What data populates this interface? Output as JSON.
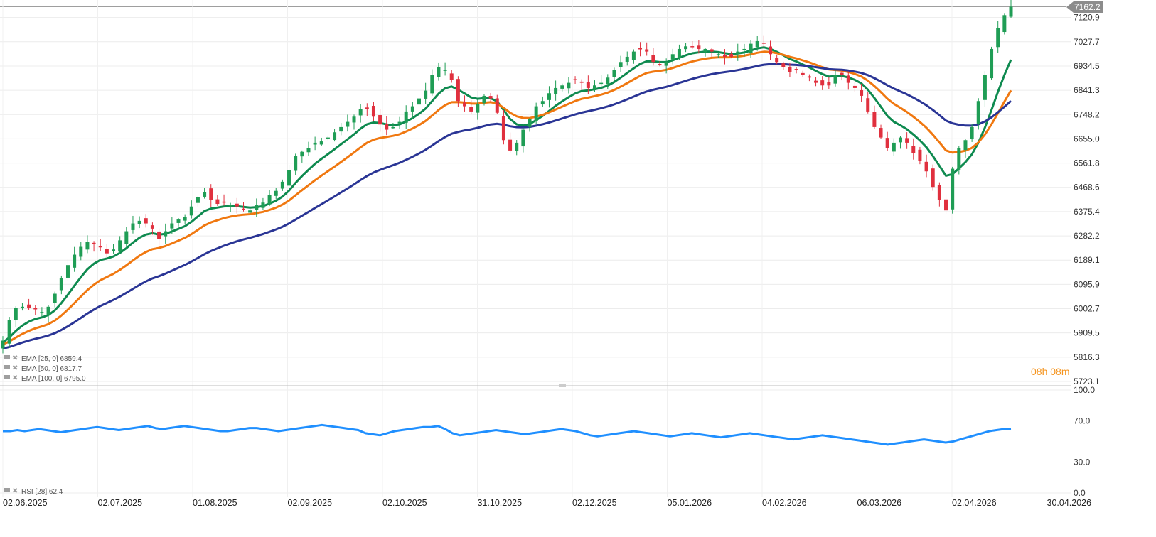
{
  "colors": {
    "up": "#1f9d55",
    "down": "#e0303e",
    "ema25": "#0e8a4f",
    "ema50": "#f07810",
    "ema100": "#2a3595",
    "rsi": "#1f8fff",
    "price_tag_bg": "#8c8c8c",
    "timer": "#f5941e"
  },
  "chart_data": [
    {
      "type": "candlestick",
      "title": "",
      "x_ticks": [
        "02.06.2025",
        "02.07.2025",
        "01.08.2025",
        "02.09.2025",
        "02.10.2025",
        "31.10.2025",
        "02.12.2025",
        "05.01.2026",
        "04.02.2026",
        "06.03.2026",
        "02.04.2026",
        "30.04.2026"
      ],
      "y_ticks": [
        "7120.9",
        "7027.7",
        "6934.5",
        "6841.3",
        "6748.2",
        "6655.0",
        "6561.8",
        "6468.6",
        "6375.4",
        "6282.2",
        "6189.1",
        "6095.9",
        "6002.7",
        "5909.5",
        "5816.3",
        "5723.1"
      ],
      "ylim": [
        5723.1,
        7162.2
      ],
      "last_price": "7162.2",
      "grid": true,
      "close_series_sampled": [
        5880,
        5960,
        6005,
        6010,
        6005,
        6000,
        5990,
        6010,
        6060,
        6120,
        6170,
        6210,
        6240,
        6260,
        6250,
        6240,
        6215,
        6230,
        6265,
        6300,
        6330,
        6340,
        6330,
        6310,
        6270,
        6300,
        6330,
        6345,
        6355,
        6395,
        6430,
        6450,
        6420,
        6405,
        6410,
        6400,
        6395,
        6385,
        6380,
        6400,
        6410,
        6440,
        6455,
        6490,
        6535,
        6590,
        6605,
        6620,
        6640,
        6645,
        6660,
        6680,
        6700,
        6720,
        6740,
        6770,
        6770,
        6740,
        6710,
        6690,
        6700,
        6720,
        6760,
        6780,
        6810,
        6840,
        6900,
        6930,
        6920,
        6880,
        6800,
        6780,
        6760,
        6790,
        6820,
        6810,
        6755,
        6650,
        6610,
        6640,
        6690,
        6730,
        6780,
        6800,
        6830,
        6850,
        6860,
        6870,
        6880,
        6870,
        6850,
        6860,
        6870,
        6890,
        6920,
        6950,
        6970,
        6990,
        7000,
        6990,
        6950,
        6940,
        6950,
        6980,
        7000,
        7010,
        7010,
        7000,
        7000,
        6990,
        6980,
        6970,
        6970,
        6990,
        7000,
        7020,
        7030,
        7020,
        6980,
        6950,
        6930,
        6910,
        6920,
        6900,
        6890,
        6870,
        6860,
        6860,
        6900,
        6900,
        6870,
        6850,
        6820,
        6760,
        6700,
        6660,
        6620,
        6640,
        6660,
        6640,
        6600,
        6570,
        6530,
        6470,
        6420,
        6380,
        6540,
        6620,
        6650,
        6700,
        6800,
        6900,
        7000,
        7080,
        7130,
        7162.2
      ],
      "indicators": [
        {
          "name": "EMA [25, 0]",
          "value": "6859.4",
          "color": "#0e8a4f"
        },
        {
          "name": "EMA [50, 0]",
          "value": "6817.7",
          "color": "#f07810"
        },
        {
          "name": "EMA [100, 0]",
          "value": "6795.0",
          "color": "#2a3595"
        }
      ]
    },
    {
      "type": "line",
      "title": "",
      "y_ticks": [
        "100.0",
        "70.0",
        "30.0",
        "0.0"
      ],
      "ylim": [
        0,
        100
      ],
      "series": [
        {
          "name": "RSI [28]",
          "last_value": "62.4",
          "values": [
            60,
            60,
            61,
            60,
            61,
            62,
            61,
            60,
            59,
            60,
            61,
            62,
            63,
            64,
            63,
            62,
            61,
            62,
            63,
            64,
            65,
            63,
            62,
            63,
            64,
            65,
            64,
            63,
            62,
            61,
            60,
            60,
            61,
            62,
            63,
            63,
            62,
            61,
            60,
            61,
            62,
            63,
            64,
            65,
            66,
            65,
            64,
            63,
            62,
            61,
            58,
            57,
            56,
            58,
            60,
            61,
            62,
            63,
            64,
            64,
            65,
            62,
            58,
            56,
            57,
            58,
            59,
            60,
            61,
            60,
            59,
            58,
            57,
            58,
            59,
            60,
            61,
            62,
            61,
            60,
            58,
            56,
            55,
            56,
            57,
            58,
            59,
            60,
            59,
            58,
            57,
            56,
            55,
            56,
            57,
            58,
            57,
            56,
            55,
            54,
            55,
            56,
            57,
            58,
            57,
            56,
            55,
            54,
            53,
            52,
            53,
            54,
            55,
            56,
            55,
            54,
            53,
            52,
            51,
            50,
            49,
            48,
            47,
            48,
            49,
            50,
            51,
            52,
            51,
            50,
            49,
            50,
            52,
            54,
            56,
            58,
            60,
            61,
            62,
            62.4
          ]
        }
      ]
    }
  ],
  "legend": {
    "ema25": "EMA [25, 0] 6859.4",
    "ema50": "EMA [50, 0] 6817.7",
    "ema100": "EMA [100, 0] 6795.0",
    "rsi": "RSI [28] 62.4"
  },
  "timer": {
    "hours": "08",
    "h": "h",
    "minutes": "08",
    "m": "m"
  }
}
